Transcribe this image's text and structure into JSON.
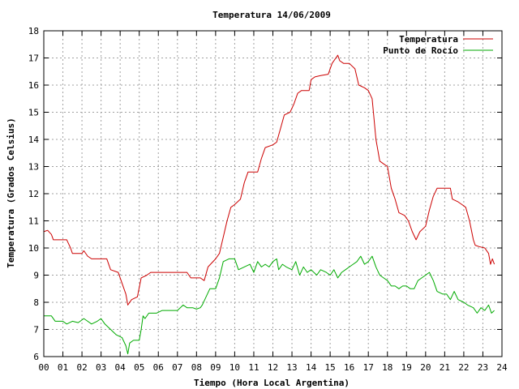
{
  "chart_data": {
    "type": "line",
    "title": "Temperatura 14/06/2009",
    "xlabel": "Tiempo (Hora Local Argentina)",
    "ylabel": "Temperatura (Grados Celsius)",
    "xlim": [
      0,
      24
    ],
    "ylim": [
      6,
      18
    ],
    "x_ticks": [
      "00",
      "01",
      "02",
      "03",
      "04",
      "05",
      "06",
      "07",
      "08",
      "09",
      "10",
      "11",
      "12",
      "13",
      "14",
      "15",
      "16",
      "17",
      "18",
      "19",
      "20",
      "21",
      "22",
      "23",
      "24"
    ],
    "y_ticks": [
      6,
      7,
      8,
      9,
      10,
      11,
      12,
      13,
      14,
      15,
      16,
      17,
      18
    ],
    "grid": true,
    "legend_position": "top-right",
    "series": [
      {
        "name": "Temperatura",
        "color": "#cc0000",
        "points": [
          [
            0.0,
            10.6
          ],
          [
            0.2,
            10.65
          ],
          [
            0.4,
            10.5
          ],
          [
            0.5,
            10.3
          ],
          [
            1.0,
            10.3
          ],
          [
            1.2,
            10.3
          ],
          [
            1.4,
            10.0
          ],
          [
            1.5,
            9.8
          ],
          [
            2.0,
            9.8
          ],
          [
            2.1,
            9.9
          ],
          [
            2.3,
            9.7
          ],
          [
            2.5,
            9.6
          ],
          [
            3.0,
            9.6
          ],
          [
            3.3,
            9.6
          ],
          [
            3.5,
            9.2
          ],
          [
            3.9,
            9.1
          ],
          [
            4.1,
            8.7
          ],
          [
            4.3,
            8.3
          ],
          [
            4.4,
            7.9
          ],
          [
            4.6,
            8.1
          ],
          [
            4.9,
            8.2
          ],
          [
            5.1,
            8.9
          ],
          [
            5.4,
            9.0
          ],
          [
            5.6,
            9.1
          ],
          [
            6.0,
            9.1
          ],
          [
            6.5,
            9.1
          ],
          [
            7.0,
            9.1
          ],
          [
            7.5,
            9.1
          ],
          [
            7.7,
            8.9
          ],
          [
            8.0,
            8.9
          ],
          [
            8.2,
            8.9
          ],
          [
            8.4,
            8.8
          ],
          [
            8.6,
            9.3
          ],
          [
            9.0,
            9.6
          ],
          [
            9.2,
            9.8
          ],
          [
            9.4,
            10.4
          ],
          [
            9.6,
            11.0
          ],
          [
            9.8,
            11.5
          ],
          [
            10.0,
            11.6
          ],
          [
            10.3,
            11.8
          ],
          [
            10.5,
            12.4
          ],
          [
            10.7,
            12.8
          ],
          [
            11.0,
            12.8
          ],
          [
            11.2,
            12.8
          ],
          [
            11.4,
            13.3
          ],
          [
            11.6,
            13.7
          ],
          [
            12.0,
            13.8
          ],
          [
            12.2,
            13.9
          ],
          [
            12.4,
            14.4
          ],
          [
            12.6,
            14.9
          ],
          [
            12.9,
            15.0
          ],
          [
            13.1,
            15.3
          ],
          [
            13.3,
            15.7
          ],
          [
            13.5,
            15.8
          ],
          [
            13.9,
            15.8
          ],
          [
            14.0,
            16.2
          ],
          [
            14.2,
            16.3
          ],
          [
            14.5,
            16.35
          ],
          [
            14.9,
            16.4
          ],
          [
            15.1,
            16.8
          ],
          [
            15.3,
            17.0
          ],
          [
            15.4,
            17.1
          ],
          [
            15.5,
            16.9
          ],
          [
            15.7,
            16.8
          ],
          [
            16.0,
            16.8
          ],
          [
            16.3,
            16.6
          ],
          [
            16.5,
            16.0
          ],
          [
            16.8,
            15.9
          ],
          [
            17.0,
            15.8
          ],
          [
            17.2,
            15.5
          ],
          [
            17.4,
            14.0
          ],
          [
            17.6,
            13.2
          ],
          [
            17.8,
            13.1
          ],
          [
            18.0,
            13.0
          ],
          [
            18.2,
            12.2
          ],
          [
            18.4,
            11.8
          ],
          [
            18.6,
            11.3
          ],
          [
            18.9,
            11.2
          ],
          [
            19.1,
            11.0
          ],
          [
            19.3,
            10.6
          ],
          [
            19.5,
            10.3
          ],
          [
            19.7,
            10.6
          ],
          [
            20.0,
            10.8
          ],
          [
            20.2,
            11.4
          ],
          [
            20.4,
            11.9
          ],
          [
            20.6,
            12.2
          ],
          [
            21.0,
            12.2
          ],
          [
            21.3,
            12.2
          ],
          [
            21.4,
            11.8
          ],
          [
            21.7,
            11.7
          ],
          [
            21.9,
            11.6
          ],
          [
            22.1,
            11.5
          ],
          [
            22.3,
            11.0
          ],
          [
            22.5,
            10.3
          ],
          [
            22.6,
            10.1
          ],
          [
            22.8,
            10.05
          ],
          [
            23.1,
            10.0
          ],
          [
            23.2,
            9.9
          ],
          [
            23.3,
            9.8
          ],
          [
            23.4,
            9.4
          ],
          [
            23.5,
            9.6
          ],
          [
            23.6,
            9.4
          ]
        ]
      },
      {
        "name": "Punto de Rocío",
        "color": "#00aa00",
        "points": [
          [
            0.0,
            7.5
          ],
          [
            0.4,
            7.5
          ],
          [
            0.6,
            7.3
          ],
          [
            1.0,
            7.3
          ],
          [
            1.2,
            7.2
          ],
          [
            1.5,
            7.3
          ],
          [
            1.8,
            7.25
          ],
          [
            2.1,
            7.4
          ],
          [
            2.3,
            7.3
          ],
          [
            2.5,
            7.2
          ],
          [
            2.8,
            7.3
          ],
          [
            3.0,
            7.4
          ],
          [
            3.2,
            7.2
          ],
          [
            3.5,
            7.0
          ],
          [
            3.8,
            6.8
          ],
          [
            4.1,
            6.7
          ],
          [
            4.3,
            6.4
          ],
          [
            4.4,
            6.1
          ],
          [
            4.5,
            6.5
          ],
          [
            4.7,
            6.6
          ],
          [
            5.0,
            6.6
          ],
          [
            5.1,
            7.0
          ],
          [
            5.2,
            7.5
          ],
          [
            5.3,
            7.4
          ],
          [
            5.5,
            7.6
          ],
          [
            5.9,
            7.6
          ],
          [
            6.2,
            7.7
          ],
          [
            6.6,
            7.7
          ],
          [
            7.0,
            7.7
          ],
          [
            7.3,
            7.9
          ],
          [
            7.5,
            7.8
          ],
          [
            7.8,
            7.8
          ],
          [
            8.0,
            7.75
          ],
          [
            8.2,
            7.8
          ],
          [
            8.3,
            7.9
          ],
          [
            8.5,
            8.2
          ],
          [
            8.7,
            8.5
          ],
          [
            9.0,
            8.5
          ],
          [
            9.2,
            8.9
          ],
          [
            9.4,
            9.5
          ],
          [
            9.7,
            9.6
          ],
          [
            10.0,
            9.6
          ],
          [
            10.2,
            9.2
          ],
          [
            10.5,
            9.3
          ],
          [
            10.8,
            9.4
          ],
          [
            11.0,
            9.1
          ],
          [
            11.2,
            9.5
          ],
          [
            11.4,
            9.3
          ],
          [
            11.6,
            9.4
          ],
          [
            11.8,
            9.3
          ],
          [
            12.0,
            9.5
          ],
          [
            12.2,
            9.6
          ],
          [
            12.3,
            9.2
          ],
          [
            12.5,
            9.4
          ],
          [
            12.7,
            9.3
          ],
          [
            13.0,
            9.2
          ],
          [
            13.2,
            9.5
          ],
          [
            13.4,
            9.0
          ],
          [
            13.6,
            9.3
          ],
          [
            13.8,
            9.1
          ],
          [
            14.0,
            9.2
          ],
          [
            14.3,
            9.0
          ],
          [
            14.5,
            9.2
          ],
          [
            14.8,
            9.1
          ],
          [
            15.0,
            9.0
          ],
          [
            15.2,
            9.2
          ],
          [
            15.4,
            8.9
          ],
          [
            15.6,
            9.1
          ],
          [
            15.8,
            9.2
          ],
          [
            16.0,
            9.3
          ],
          [
            16.2,
            9.4
          ],
          [
            16.4,
            9.5
          ],
          [
            16.6,
            9.7
          ],
          [
            16.8,
            9.4
          ],
          [
            17.0,
            9.5
          ],
          [
            17.2,
            9.7
          ],
          [
            17.4,
            9.3
          ],
          [
            17.6,
            9.0
          ],
          [
            17.8,
            8.9
          ],
          [
            18.0,
            8.8
          ],
          [
            18.2,
            8.6
          ],
          [
            18.4,
            8.6
          ],
          [
            18.6,
            8.5
          ],
          [
            18.8,
            8.6
          ],
          [
            19.0,
            8.6
          ],
          [
            19.2,
            8.5
          ],
          [
            19.4,
            8.5
          ],
          [
            19.6,
            8.8
          ],
          [
            19.8,
            8.9
          ],
          [
            20.0,
            9.0
          ],
          [
            20.2,
            9.1
          ],
          [
            20.4,
            8.8
          ],
          [
            20.6,
            8.4
          ],
          [
            20.9,
            8.3
          ],
          [
            21.1,
            8.3
          ],
          [
            21.3,
            8.1
          ],
          [
            21.5,
            8.4
          ],
          [
            21.7,
            8.1
          ],
          [
            22.0,
            8.0
          ],
          [
            22.2,
            7.9
          ],
          [
            22.5,
            7.8
          ],
          [
            22.7,
            7.6
          ],
          [
            22.9,
            7.8
          ],
          [
            23.1,
            7.7
          ],
          [
            23.3,
            7.9
          ],
          [
            23.45,
            7.6
          ],
          [
            23.6,
            7.7
          ]
        ]
      }
    ]
  }
}
